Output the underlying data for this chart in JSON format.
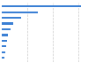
{
  "values": [
    30.9,
    14.1,
    7.5,
    4.5,
    3.4,
    2.5,
    2.1,
    1.7,
    1.5,
    1.2
  ],
  "bar_color": "#3a7fd4",
  "background_color": "#ffffff",
  "grid_color": "#c8c8c8",
  "xlim": [
    0,
    33
  ],
  "bar_height": 0.35,
  "n_bars": 10
}
